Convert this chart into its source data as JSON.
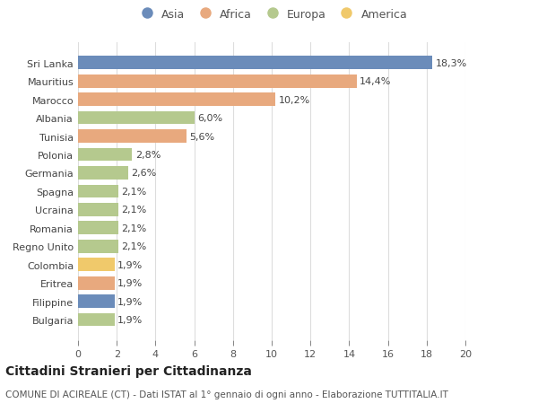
{
  "categories": [
    "Bulgaria",
    "Filippine",
    "Eritrea",
    "Colombia",
    "Regno Unito",
    "Romania",
    "Ucraina",
    "Spagna",
    "Germania",
    "Polonia",
    "Tunisia",
    "Albania",
    "Marocco",
    "Mauritius",
    "Sri Lanka"
  ],
  "values": [
    1.9,
    1.9,
    1.9,
    1.9,
    2.1,
    2.1,
    2.1,
    2.1,
    2.6,
    2.8,
    5.6,
    6.0,
    10.2,
    14.4,
    18.3
  ],
  "labels": [
    "1,9%",
    "1,9%",
    "1,9%",
    "1,9%",
    "2,1%",
    "2,1%",
    "2,1%",
    "2,1%",
    "2,6%",
    "2,8%",
    "5,6%",
    "6,0%",
    "10,2%",
    "14,4%",
    "18,3%"
  ],
  "continents": [
    "Europa",
    "Asia",
    "Africa",
    "America",
    "Europa",
    "Europa",
    "Europa",
    "Europa",
    "Europa",
    "Europa",
    "Africa",
    "Europa",
    "Africa",
    "Africa",
    "Asia"
  ],
  "colors": {
    "Asia": "#6b8cba",
    "Africa": "#e8a97e",
    "Europa": "#b5c98e",
    "America": "#f0c96b"
  },
  "legend_order": [
    "Asia",
    "Africa",
    "Europa",
    "America"
  ],
  "title": "Cittadini Stranieri per Cittadinanza",
  "subtitle": "COMUNE DI ACIREALE (CT) - Dati ISTAT al 1° gennaio di ogni anno - Elaborazione TUTTITALIA.IT",
  "xlim": [
    0,
    20
  ],
  "xticks": [
    0,
    2,
    4,
    6,
    8,
    10,
    12,
    14,
    16,
    18,
    20
  ],
  "bg_color": "#ffffff",
  "grid_color": "#dddddd",
  "bar_height": 0.72,
  "label_fontsize": 8.0,
  "title_fontsize": 10,
  "subtitle_fontsize": 7.5,
  "ytick_fontsize": 8.0,
  "xtick_fontsize": 8.0
}
